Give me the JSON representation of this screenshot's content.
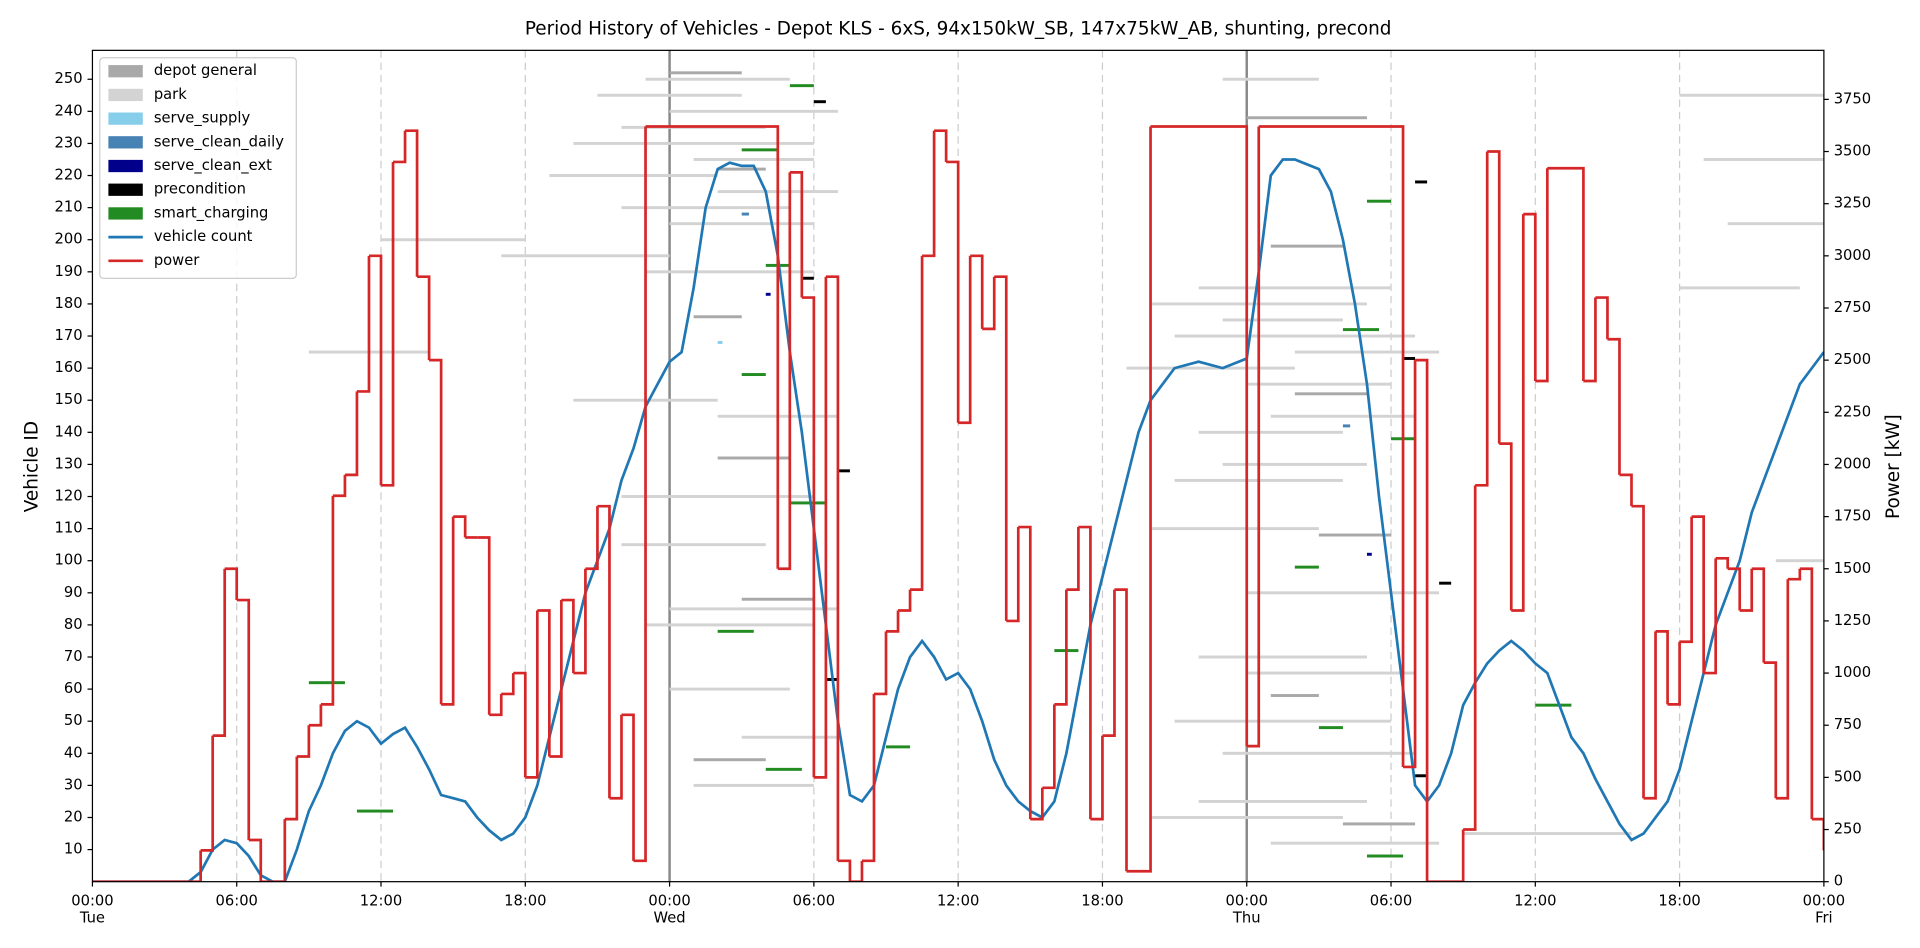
{
  "chart_data": {
    "type": "gantt",
    "title": "Period History of Vehicles - Depot KLS - 6xS, 94x150kW_SB, 147x75kW_AB, shunting, precond",
    "y_label": "Vehicle ID",
    "y2_label": "Power [kW]",
    "xlim": [
      0,
      72
    ],
    "ylim": [
      0,
      259
    ],
    "y2lim": [
      0,
      3985
    ],
    "xticks": [
      {
        "value": 0,
        "label": "00:00",
        "day": "Tue"
      },
      {
        "value": 6,
        "label": "06:00"
      },
      {
        "value": 12,
        "label": "12:00"
      },
      {
        "value": 18,
        "label": "18:00"
      },
      {
        "value": 24,
        "label": "00:00",
        "day": "Wed"
      },
      {
        "value": 30,
        "label": "06:00"
      },
      {
        "value": 36,
        "label": "12:00"
      },
      {
        "value": 42,
        "label": "18:00"
      },
      {
        "value": 48,
        "label": "00:00",
        "day": "Thu"
      },
      {
        "value": 54,
        "label": "06:00"
      },
      {
        "value": 60,
        "label": "12:00"
      },
      {
        "value": 66,
        "label": "18:00"
      },
      {
        "value": 72,
        "label": "00:00",
        "day": "Fri"
      }
    ],
    "yticks": [
      10,
      20,
      30,
      40,
      50,
      60,
      70,
      80,
      90,
      100,
      110,
      120,
      130,
      140,
      150,
      160,
      170,
      180,
      190,
      200,
      210,
      220,
      230,
      240,
      250
    ],
    "y2ticks": [
      0,
      250,
      500,
      750,
      1000,
      1250,
      1500,
      1750,
      2000,
      2250,
      2500,
      2750,
      3000,
      3250,
      3500,
      3750
    ],
    "legend": "upper left",
    "series": [
      {
        "name": "depot general",
        "color": "#a9a9a9",
        "type": "gantt",
        "segments": [
          [
            252,
            24,
            27
          ],
          [
            238,
            48,
            53
          ],
          [
            222,
            26,
            28
          ],
          [
            198,
            49,
            52
          ],
          [
            176,
            25,
            27
          ],
          [
            152,
            50,
            53
          ],
          [
            132,
            26,
            29
          ],
          [
            108,
            51,
            54
          ],
          [
            88,
            27,
            30
          ],
          [
            58,
            49,
            51
          ],
          [
            38,
            25,
            28
          ],
          [
            18,
            52,
            55
          ]
        ]
      },
      {
        "name": "park",
        "color": "#d3d3d3",
        "type": "gantt",
        "segments": [
          [
            250,
            23,
            29
          ],
          [
            245,
            21,
            27
          ],
          [
            240,
            24,
            31
          ],
          [
            235,
            22,
            28
          ],
          [
            230,
            20,
            30
          ],
          [
            225,
            25,
            30
          ],
          [
            220,
            19,
            26
          ],
          [
            215,
            26,
            31
          ],
          [
            210,
            22,
            29
          ],
          [
            205,
            24,
            30
          ],
          [
            200,
            12,
            18
          ],
          [
            195,
            17,
            24
          ],
          [
            190,
            23,
            30
          ],
          [
            185,
            46,
            54
          ],
          [
            180,
            44,
            53
          ],
          [
            175,
            47,
            52
          ],
          [
            170,
            45,
            55
          ],
          [
            165,
            9,
            14
          ],
          [
            160,
            43,
            50
          ],
          [
            155,
            48,
            54
          ],
          [
            150,
            20,
            26
          ],
          [
            145,
            49,
            55
          ],
          [
            140,
            46,
            52
          ],
          [
            130,
            47,
            53
          ],
          [
            120,
            22,
            30
          ],
          [
            110,
            44,
            51
          ],
          [
            100,
            70,
            72
          ],
          [
            90,
            48,
            56
          ],
          [
            80,
            23,
            30
          ],
          [
            70,
            46,
            53
          ],
          [
            60,
            24,
            29
          ],
          [
            50,
            45,
            54
          ],
          [
            40,
            47,
            55
          ],
          [
            30,
            25,
            30
          ],
          [
            20,
            44,
            52
          ],
          [
            12,
            49,
            56
          ],
          [
            245,
            66,
            72
          ],
          [
            225,
            67,
            72
          ],
          [
            205,
            68,
            72
          ],
          [
            185,
            66,
            71
          ],
          [
            165,
            50,
            56
          ],
          [
            145,
            26,
            31
          ],
          [
            125,
            45,
            52
          ],
          [
            105,
            22,
            28
          ],
          [
            85,
            24,
            31
          ],
          [
            65,
            48,
            55
          ],
          [
            45,
            27,
            31
          ],
          [
            25,
            46,
            53
          ],
          [
            15,
            57,
            64
          ],
          [
            250,
            47,
            51
          ]
        ]
      },
      {
        "name": "serve_supply",
        "color": "#87ceeb",
        "type": "gantt",
        "segments": [
          [
            168,
            26,
            26.2
          ]
        ]
      },
      {
        "name": "serve_clean_daily",
        "color": "#4682b4",
        "type": "gantt",
        "segments": [
          [
            208,
            27,
            27.3
          ],
          [
            142,
            52,
            52.3
          ]
        ]
      },
      {
        "name": "serve_clean_ext",
        "color": "#00008b",
        "type": "gantt",
        "segments": [
          [
            183,
            28,
            28.2
          ],
          [
            102,
            53,
            53.2
          ]
        ]
      },
      {
        "name": "precondition",
        "color": "#000000",
        "type": "gantt",
        "segments": [
          [
            243,
            30,
            30.5
          ],
          [
            218,
            55,
            55.5
          ],
          [
            188,
            29.5,
            30
          ],
          [
            163,
            54.5,
            55
          ],
          [
            128,
            31,
            31.5
          ],
          [
            93,
            56,
            56.5
          ],
          [
            63,
            30.5,
            31
          ],
          [
            33,
            55,
            55.5
          ]
        ]
      },
      {
        "name": "smart_charging",
        "color": "#228b22",
        "type": "gantt",
        "segments": [
          [
            248,
            29,
            30
          ],
          [
            228,
            27,
            28.5
          ],
          [
            212,
            53,
            54
          ],
          [
            192,
            28,
            29
          ],
          [
            172,
            52,
            53.5
          ],
          [
            158,
            27,
            28
          ],
          [
            138,
            54,
            55
          ],
          [
            118,
            29,
            30.5
          ],
          [
            98,
            50,
            51
          ],
          [
            78,
            26,
            27.5
          ],
          [
            62,
            9,
            10.5
          ],
          [
            48,
            51,
            52
          ],
          [
            35,
            28,
            29.5
          ],
          [
            22,
            11,
            12.5
          ],
          [
            8,
            53,
            54.5
          ],
          [
            72,
            40,
            41
          ],
          [
            55,
            60,
            61.5
          ],
          [
            42,
            33,
            34
          ]
        ]
      },
      {
        "name": "vehicle count",
        "color": "#1f77b4",
        "type": "line",
        "x": [
          0,
          4,
          4.5,
          5,
          5.5,
          6,
          6.5,
          7,
          7.5,
          8,
          8.5,
          9,
          9.5,
          10,
          10.5,
          11,
          11.5,
          12,
          12.5,
          13,
          13.5,
          14,
          14.5,
          15,
          15.5,
          16,
          16.5,
          17,
          17.5,
          18,
          18.5,
          19,
          19.5,
          20,
          20.5,
          21,
          21.5,
          22,
          22.5,
          23,
          23.5,
          24,
          24.5,
          25,
          25.5,
          26,
          26.5,
          27,
          27.5,
          28,
          28.5,
          29,
          29.5,
          30,
          30.5,
          31,
          31.5,
          32,
          32.5,
          33,
          33.5,
          34,
          34.5,
          35,
          35.5,
          36,
          36.5,
          37,
          37.5,
          38,
          38.5,
          39,
          39.5,
          40,
          40.5,
          41,
          41.5,
          42,
          42.5,
          43,
          43.5,
          44,
          44.5,
          45,
          46,
          47,
          48,
          48.5,
          49,
          49.5,
          50,
          51,
          51.5,
          52,
          52.5,
          53,
          53.5,
          54,
          54.5,
          55,
          55.5,
          56,
          56.5,
          57,
          57.5,
          58,
          58.5,
          59,
          59.5,
          60,
          60.5,
          61,
          61.5,
          62,
          62.5,
          63,
          63.5,
          64,
          64.5,
          65,
          65.5,
          66,
          66.5,
          67,
          67.5,
          68,
          68.5,
          69,
          69.5,
          70,
          70.5,
          71,
          71.5,
          72
        ],
        "values": [
          0,
          0,
          3,
          10,
          13,
          12,
          8,
          2,
          0,
          0,
          10,
          22,
          30,
          40,
          47,
          50,
          48,
          43,
          46,
          48,
          42,
          35,
          27,
          26,
          25,
          20,
          16,
          13,
          15,
          20,
          30,
          45,
          60,
          75,
          90,
          100,
          110,
          125,
          135,
          148,
          155,
          162,
          165,
          185,
          210,
          222,
          224,
          223,
          223,
          215,
          195,
          165,
          140,
          110,
          80,
          50,
          27,
          25,
          30,
          45,
          60,
          70,
          75,
          70,
          63,
          65,
          60,
          50,
          38,
          30,
          25,
          22,
          20,
          25,
          40,
          60,
          80,
          95,
          110,
          125,
          140,
          150,
          155,
          160,
          162,
          160,
          163,
          190,
          220,
          225,
          225,
          222,
          215,
          200,
          180,
          155,
          120,
          90,
          60,
          30,
          25,
          30,
          40,
          55,
          62,
          68,
          72,
          75,
          72,
          68,
          65,
          55,
          45,
          40,
          32,
          25,
          18,
          13,
          15,
          20,
          25,
          35,
          50,
          65,
          80,
          90,
          100,
          115,
          125,
          135,
          145,
          155,
          160,
          165
        ]
      },
      {
        "name": "power",
        "color": "#d62728",
        "type": "step",
        "axis": "y2",
        "x": [
          0,
          4,
          4.5,
          5,
          5.5,
          6,
          6.5,
          7,
          7.5,
          8,
          8.5,
          9,
          9.5,
          10,
          10.5,
          11,
          11.5,
          12,
          12.5,
          13,
          13.5,
          14,
          14.5,
          15,
          15.5,
          16,
          16.5,
          17,
          17.5,
          18,
          18.5,
          19,
          19.5,
          20,
          20.5,
          21,
          21.5,
          22,
          22.5,
          23,
          28.5,
          29,
          29.5,
          30,
          30.5,
          31,
          31.5,
          32,
          32.5,
          33,
          33.5,
          34,
          34.5,
          35,
          35.5,
          36,
          36.5,
          37,
          37.5,
          38,
          38.5,
          39,
          39.5,
          40,
          40.5,
          41,
          41.5,
          42,
          42.5,
          43,
          44,
          48,
          48.5,
          54.5,
          55,
          55.5,
          57,
          57.5,
          58,
          58.5,
          59,
          59.5,
          60,
          60.5,
          62,
          62.5,
          63,
          63.5,
          64,
          64.5,
          65,
          65.5,
          66,
          66.5,
          67,
          67.5,
          68,
          68.5,
          69,
          69.5,
          70,
          70.5,
          71,
          71.5,
          72
        ],
        "values": [
          0,
          0,
          150,
          700,
          1500,
          1350,
          200,
          0,
          0,
          300,
          600,
          750,
          850,
          1850,
          1950,
          2350,
          3000,
          1900,
          3450,
          3600,
          2900,
          2500,
          850,
          1750,
          1650,
          1650,
          800,
          900,
          1000,
          500,
          1300,
          600,
          1350,
          1000,
          1500,
          1800,
          400,
          800,
          100,
          3620,
          1500,
          3400,
          2800,
          500,
          2900,
          100,
          0,
          100,
          900,
          1200,
          1300,
          1400,
          3000,
          3600,
          3450,
          2200,
          3000,
          2650,
          2900,
          1250,
          1700,
          300,
          450,
          850,
          1400,
          1700,
          300,
          700,
          1400,
          50,
          3620,
          650,
          3620,
          550,
          2500,
          0,
          250,
          1900,
          3500,
          2100,
          1300,
          3200,
          2400,
          3420,
          2400,
          2800,
          2600,
          1950,
          1800,
          400,
          1200,
          850,
          1150,
          1750,
          1000,
          1550,
          1500,
          1300,
          1500,
          1050,
          400,
          1450,
          1500,
          300,
          150
        ]
      }
    ]
  }
}
